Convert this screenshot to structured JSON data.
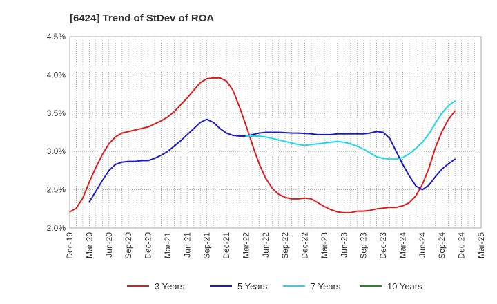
{
  "chart_data": {
    "type": "line",
    "title": "[6424]  Trend of StDev of ROA",
    "xlabel": "",
    "ylabel": "",
    "ylim": [
      2.0,
      4.5
    ],
    "yticks": [
      "2.0%",
      "2.5%",
      "3.0%",
      "3.5%",
      "4.0%",
      "4.5%"
    ],
    "ytick_values": [
      2.0,
      2.5,
      3.0,
      3.5,
      4.0,
      4.5
    ],
    "xticks": [
      "Dec-19",
      "Mar-20",
      "Jun-20",
      "Sep-20",
      "Dec-20",
      "Mar-21",
      "Jun-21",
      "Sep-21",
      "Dec-21",
      "Mar-22",
      "Jun-22",
      "Sep-22",
      "Dec-22",
      "Mar-23",
      "Jun-23",
      "Sep-23",
      "Dec-23",
      "Mar-24",
      "Jun-24",
      "Sep-24",
      "Dec-24",
      "Mar-25"
    ],
    "x_unit": "month index from Dec-19 (0) to Mar-25 (63)",
    "xlim": [
      0,
      63
    ],
    "grid": true,
    "legend_position": "bottom",
    "series": [
      {
        "name": "3 Years",
        "color": "#dd1c1c",
        "points": [
          [
            0,
            2.21
          ],
          [
            1,
            2.26
          ],
          [
            2,
            2.39
          ],
          [
            3,
            2.6
          ],
          [
            4,
            2.79
          ],
          [
            5,
            2.96
          ],
          [
            6,
            3.1
          ],
          [
            7,
            3.19
          ],
          [
            8,
            3.24
          ],
          [
            9,
            3.26
          ],
          [
            10,
            3.28
          ],
          [
            11,
            3.3
          ],
          [
            12,
            3.32
          ],
          [
            13,
            3.36
          ],
          [
            14,
            3.4
          ],
          [
            15,
            3.45
          ],
          [
            16,
            3.52
          ],
          [
            17,
            3.61
          ],
          [
            18,
            3.7
          ],
          [
            19,
            3.8
          ],
          [
            20,
            3.9
          ],
          [
            21,
            3.95
          ],
          [
            22,
            3.96
          ],
          [
            23,
            3.96
          ],
          [
            24,
            3.92
          ],
          [
            25,
            3.8
          ],
          [
            26,
            3.58
          ],
          [
            27,
            3.34
          ],
          [
            28,
            3.08
          ],
          [
            29,
            2.84
          ],
          [
            30,
            2.65
          ],
          [
            31,
            2.52
          ],
          [
            32,
            2.44
          ],
          [
            33,
            2.4
          ],
          [
            34,
            2.38
          ],
          [
            35,
            2.38
          ],
          [
            36,
            2.39
          ],
          [
            37,
            2.38
          ],
          [
            38,
            2.33
          ],
          [
            39,
            2.28
          ],
          [
            40,
            2.24
          ],
          [
            41,
            2.21
          ],
          [
            42,
            2.2
          ],
          [
            43,
            2.2
          ],
          [
            44,
            2.22
          ],
          [
            45,
            2.22
          ],
          [
            46,
            2.23
          ],
          [
            47,
            2.25
          ],
          [
            48,
            2.26
          ],
          [
            49,
            2.27
          ],
          [
            50,
            2.27
          ],
          [
            51,
            2.29
          ],
          [
            52,
            2.33
          ],
          [
            53,
            2.42
          ],
          [
            54,
            2.57
          ],
          [
            55,
            2.78
          ],
          [
            56,
            3.05
          ],
          [
            57,
            3.26
          ],
          [
            58,
            3.42
          ],
          [
            59,
            3.53
          ]
        ]
      },
      {
        "name": "5 Years",
        "color": "#1c1cc8",
        "points": [
          [
            3,
            2.34
          ],
          [
            4,
            2.48
          ],
          [
            5,
            2.62
          ],
          [
            6,
            2.75
          ],
          [
            7,
            2.83
          ],
          [
            8,
            2.86
          ],
          [
            9,
            2.87
          ],
          [
            10,
            2.87
          ],
          [
            11,
            2.88
          ],
          [
            12,
            2.88
          ],
          [
            13,
            2.91
          ],
          [
            14,
            2.95
          ],
          [
            15,
            3.0
          ],
          [
            16,
            3.07
          ],
          [
            17,
            3.14
          ],
          [
            18,
            3.22
          ],
          [
            19,
            3.3
          ],
          [
            20,
            3.38
          ],
          [
            21,
            3.42
          ],
          [
            22,
            3.38
          ],
          [
            23,
            3.3
          ],
          [
            24,
            3.24
          ],
          [
            25,
            3.21
          ],
          [
            26,
            3.2
          ],
          [
            27,
            3.2
          ],
          [
            28,
            3.22
          ],
          [
            29,
            3.24
          ],
          [
            30,
            3.25
          ],
          [
            31,
            3.25
          ],
          [
            32,
            3.25
          ],
          [
            33,
            3.245
          ],
          [
            34,
            3.24
          ],
          [
            35,
            3.24
          ],
          [
            36,
            3.235
          ],
          [
            37,
            3.23
          ],
          [
            38,
            3.22
          ],
          [
            39,
            3.22
          ],
          [
            40,
            3.22
          ],
          [
            41,
            3.23
          ],
          [
            42,
            3.23
          ],
          [
            43,
            3.23
          ],
          [
            44,
            3.23
          ],
          [
            45,
            3.23
          ],
          [
            46,
            3.24
          ],
          [
            47,
            3.26
          ],
          [
            48,
            3.25
          ],
          [
            49,
            3.17
          ],
          [
            50,
            3.0
          ],
          [
            51,
            2.83
          ],
          [
            52,
            2.68
          ],
          [
            53,
            2.55
          ],
          [
            54,
            2.5
          ],
          [
            55,
            2.56
          ],
          [
            56,
            2.67
          ],
          [
            57,
            2.77
          ],
          [
            58,
            2.84
          ],
          [
            59,
            2.9
          ]
        ]
      },
      {
        "name": "7 Years",
        "color": "#1cd8e8",
        "points": [
          [
            27,
            3.2
          ],
          [
            28,
            3.2
          ],
          [
            29,
            3.2
          ],
          [
            30,
            3.19
          ],
          [
            31,
            3.17
          ],
          [
            32,
            3.15
          ],
          [
            33,
            3.13
          ],
          [
            34,
            3.11
          ],
          [
            35,
            3.09
          ],
          [
            36,
            3.08
          ],
          [
            37,
            3.09
          ],
          [
            38,
            3.1
          ],
          [
            39,
            3.11
          ],
          [
            40,
            3.12
          ],
          [
            41,
            3.13
          ],
          [
            42,
            3.12
          ],
          [
            43,
            3.1
          ],
          [
            44,
            3.07
          ],
          [
            45,
            3.03
          ],
          [
            46,
            2.98
          ],
          [
            47,
            2.93
          ],
          [
            48,
            2.91
          ],
          [
            49,
            2.9
          ],
          [
            50,
            2.9
          ],
          [
            51,
            2.92
          ],
          [
            52,
            2.97
          ],
          [
            53,
            3.04
          ],
          [
            54,
            3.12
          ],
          [
            55,
            3.23
          ],
          [
            56,
            3.37
          ],
          [
            57,
            3.5
          ],
          [
            58,
            3.6
          ],
          [
            59,
            3.66
          ]
        ]
      },
      {
        "name": "10 Years",
        "color": "#1c8c1c",
        "points": []
      }
    ]
  }
}
